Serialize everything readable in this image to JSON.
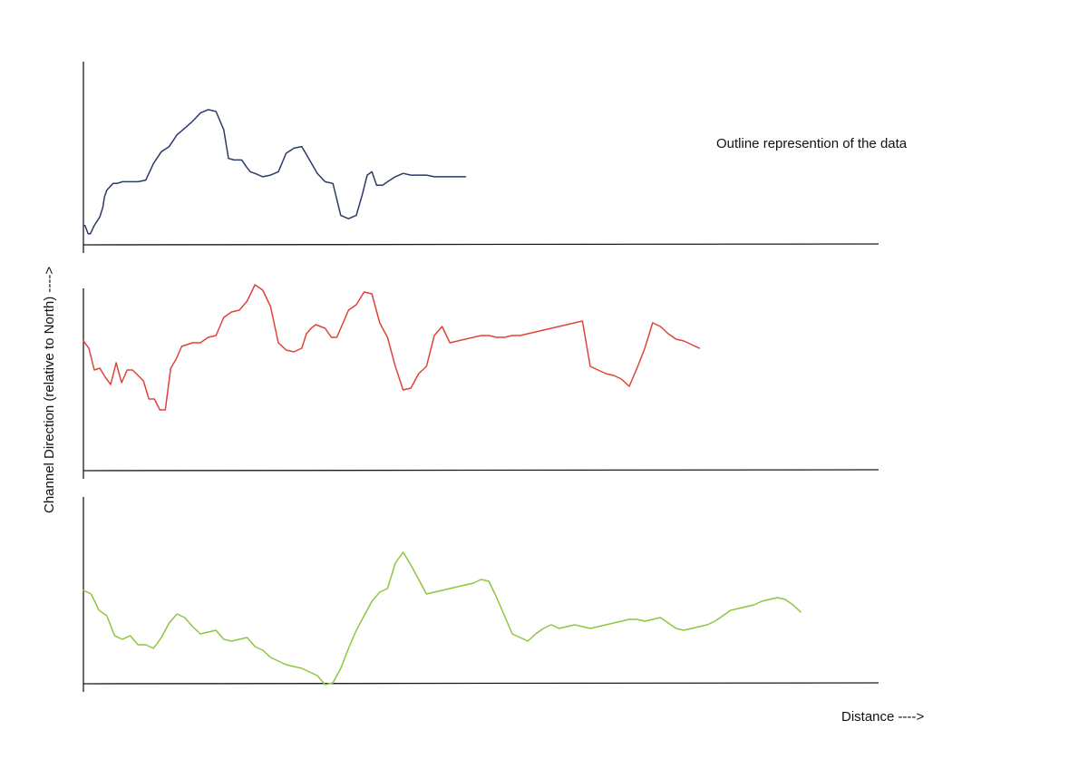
{
  "chart_data": {
    "type": "line",
    "layout": "three stacked panels",
    "annotation": "Outline represention of the data",
    "xlabel": "Distance ---->",
    "ylabel": "Channel Direction (relative to North) ---->",
    "xlim": [
      0,
      100
    ],
    "ylim": [
      0,
      100
    ],
    "grid": false,
    "legend": "none",
    "series": [
      {
        "color": "#2b3a67",
        "x": [
          0.0,
          0.2,
          0.6,
          0.9,
          1.4,
          2.1,
          2.5,
          2.7,
          3.0,
          3.4,
          3.8,
          4.3,
          5.0,
          6.0,
          7.0,
          8.0,
          9.0,
          10.0,
          11.0,
          12.0,
          13.0,
          14.0,
          15.0,
          16.0,
          17.0,
          18.0,
          18.6,
          19.3,
          19.8,
          20.3,
          20.9,
          21.4,
          22.0,
          23.0,
          24.0,
          25.0,
          26.0,
          27.0,
          28.0,
          29.0,
          30.0,
          31.0,
          32.0,
          33.0,
          34.0,
          35.0,
          35.8,
          36.4,
          37.0,
          37.6,
          38.4,
          39.0,
          40.0,
          41.0,
          42.0,
          43.0,
          44.0,
          45.0,
          46.0,
          47.0,
          48.0,
          49.0
        ],
        "values": [
          17,
          17,
          12,
          12,
          17,
          22,
          28,
          34,
          38,
          40,
          42,
          42,
          43,
          43,
          43,
          44,
          54,
          61,
          64,
          71,
          75,
          79,
          84,
          86,
          85,
          74,
          57,
          56,
          56,
          56,
          52,
          49,
          48,
          46,
          47,
          49,
          60,
          63,
          64,
          56,
          48,
          43,
          42,
          23,
          21,
          23,
          36,
          47,
          49,
          41,
          41,
          43,
          46,
          48,
          47,
          47,
          47,
          46,
          46,
          46,
          46,
          46
        ]
      },
      {
        "color": "#e0423a",
        "x": [
          0.0,
          0.7,
          1.4,
          2.1,
          2.8,
          3.5,
          4.2,
          4.9,
          5.6,
          6.3,
          7.0,
          7.7,
          8.4,
          9.1,
          9.8,
          10.5,
          11.2,
          11.9,
          12.6,
          13.3,
          14.0,
          15.0,
          16.0,
          17.0,
          18.0,
          19.0,
          20.0,
          21.0,
          22.0,
          23.0,
          24.0,
          25.0,
          26.0,
          27.0,
          28.0,
          28.6,
          29.2,
          29.8,
          30.4,
          31.0,
          31.8,
          32.5,
          33.3,
          34.0,
          35.0,
          36.0,
          37.0,
          38.0,
          39.0,
          40.0,
          41.0,
          42.0,
          43.0,
          44.0,
          45.0,
          46.0,
          47.0,
          48.0,
          49.0,
          50.0,
          51.0,
          52.0,
          53.0,
          54.0,
          55.0,
          56.0,
          57.0,
          58.0,
          59.0,
          60.0,
          61.0,
          62.0,
          63.0,
          64.0,
          65.0,
          66.0,
          67.0,
          68.0,
          69.0,
          70.0,
          71.0,
          72.0,
          73.0,
          74.0,
          75.0,
          76.0,
          77.0,
          78.0,
          79.0
        ],
        "values": [
          62,
          58,
          46,
          47,
          42,
          38,
          50,
          39,
          46,
          46,
          43,
          40,
          30,
          30,
          24,
          24,
          47,
          52,
          59,
          60,
          61,
          61,
          64,
          65,
          75,
          78,
          79,
          84,
          93,
          90,
          81,
          61,
          57,
          56,
          58,
          66,
          69,
          71,
          70,
          69,
          64,
          64,
          72,
          79,
          82,
          89,
          88,
          72,
          64,
          48,
          35,
          36,
          44,
          48,
          65,
          70,
          61,
          62,
          63,
          64,
          65,
          65,
          64,
          64,
          65,
          65,
          66,
          67,
          68,
          69,
          70,
          71,
          72,
          73,
          48,
          46,
          44,
          43,
          41,
          37,
          47,
          58,
          72,
          70,
          66,
          63,
          62,
          60,
          58
        ]
      },
      {
        "color": "#8dc63f",
        "x": [
          0.0,
          1.0,
          2.0,
          3.0,
          4.0,
          5.0,
          6.0,
          7.0,
          8.0,
          9.0,
          10.0,
          11.0,
          12.0,
          13.0,
          14.0,
          15.0,
          16.0,
          17.0,
          18.0,
          19.0,
          20.0,
          21.0,
          22.0,
          23.0,
          24.0,
          25.0,
          26.0,
          27.0,
          28.0,
          29.0,
          30.0,
          31.0,
          32.0,
          33.0,
          34.0,
          35.0,
          36.0,
          37.0,
          38.0,
          39.0,
          40.0,
          41.0,
          42.0,
          43.0,
          44.0,
          45.0,
          46.0,
          47.0,
          48.0,
          49.0,
          50.0,
          51.0,
          52.0,
          53.0,
          54.0,
          55.0,
          56.0,
          57.0,
          58.0,
          59.0,
          60.0,
          61.0,
          62.0,
          63.0,
          64.0,
          65.0,
          66.0,
          67.0,
          68.0,
          69.0,
          70.0,
          71.0,
          72.0,
          73.0,
          74.0,
          75.0,
          76.0,
          77.0,
          78.0,
          79.0,
          80.0,
          81.0,
          82.0,
          83.0,
          84.0,
          85.0,
          86.0,
          87.0,
          88.0,
          89.0,
          90.0,
          91.0,
          92.0
        ],
        "values": [
          57,
          55,
          46,
          43,
          32,
          30,
          32,
          27,
          27,
          25,
          31,
          39,
          44,
          42,
          37,
          33,
          34,
          35,
          30,
          29,
          30,
          31,
          26,
          24,
          20,
          18,
          16,
          15,
          14,
          12,
          10,
          5,
          6,
          14,
          25,
          35,
          43,
          51,
          56,
          58,
          72,
          78,
          71,
          63,
          55,
          56,
          57,
          58,
          59,
          60,
          61,
          63,
          62,
          53,
          43,
          33,
          31,
          29,
          33,
          36,
          38,
          36,
          37,
          38,
          37,
          36,
          37,
          38,
          39,
          40,
          41,
          41,
          40,
          41,
          42,
          39,
          36,
          35,
          36,
          37,
          38,
          40,
          43,
          46,
          47,
          48,
          49,
          51,
          52,
          53,
          52,
          49,
          45
        ]
      }
    ]
  }
}
